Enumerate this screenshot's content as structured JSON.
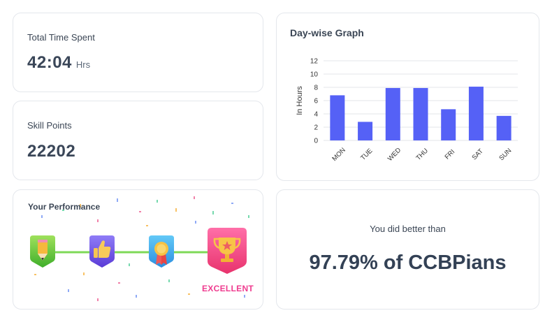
{
  "time_card": {
    "label": "Total Time Spent",
    "value": "42:04",
    "unit": "Hrs"
  },
  "skill_card": {
    "label": "Skill Points",
    "value": "22202"
  },
  "graph_card": {
    "title": "Day-wise Graph"
  },
  "chart_data": {
    "type": "bar",
    "categories": [
      "MON",
      "TUE",
      "WED",
      "THU",
      "FRI",
      "SAT",
      "SUN"
    ],
    "values": [
      6.8,
      2.8,
      7.9,
      7.9,
      4.7,
      8.1,
      3.7
    ],
    "ylabel": "In Hours",
    "xlabel": "",
    "ylim": [
      0,
      12
    ],
    "yticks": [
      "0",
      "2",
      "4",
      "6",
      "8",
      "10",
      "12"
    ],
    "grid": true,
    "bar_color": "#5561f6"
  },
  "performance_card": {
    "title": "Your Performance",
    "level_label": "EXCELLENT",
    "badges": [
      "pencil-badge-icon",
      "thumbs-up-badge-icon",
      "medal-badge-icon",
      "trophy-badge-icon"
    ],
    "accent_color": "#ef3c8f",
    "track_color": "#7ed957"
  },
  "better_card": {
    "line1": "You did better than",
    "line2": "97.79% of CCBPians"
  }
}
